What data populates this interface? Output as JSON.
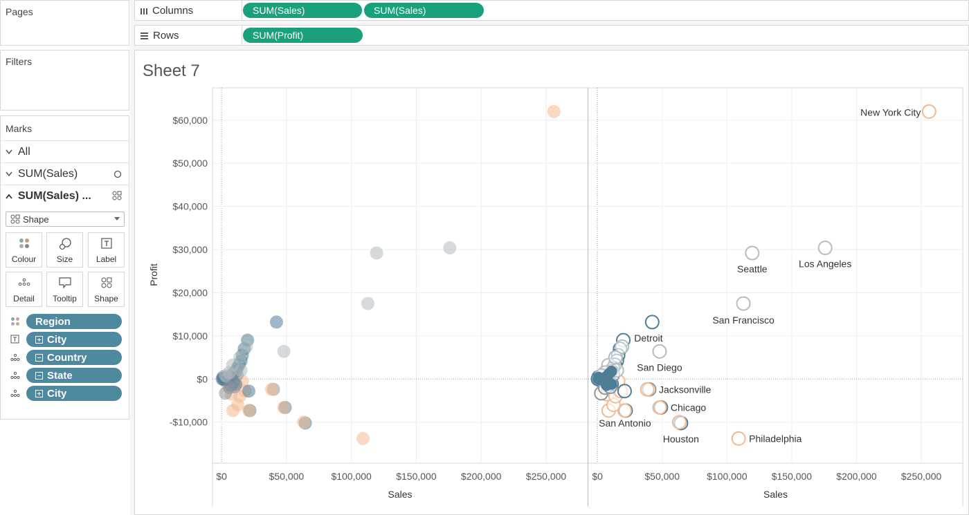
{
  "left_panel": {
    "pages_title": "Pages",
    "filters_title": "Filters",
    "marks_title": "Marks",
    "marks_rows": [
      {
        "label": "All",
        "expanded": true
      },
      {
        "label": "SUM(Sales)",
        "expanded": false,
        "icon": "circle-icon"
      },
      {
        "label": "SUM(Sales) ...",
        "expanded": true,
        "icon": "shape-icon"
      }
    ],
    "mark_type": "Shape",
    "mark_buttons": [
      "Colour",
      "Size",
      "Label",
      "Detail",
      "Tooltip",
      "Shape"
    ],
    "fields": [
      {
        "label": "Region",
        "role": "colour",
        "toggle": ""
      },
      {
        "label": "City",
        "role": "label",
        "toggle": "plus"
      },
      {
        "label": "Country",
        "role": "detail",
        "toggle": "minus"
      },
      {
        "label": "State",
        "role": "detail",
        "toggle": "minus"
      },
      {
        "label": "City",
        "role": "detail",
        "toggle": "plus"
      }
    ]
  },
  "shelves": {
    "columns_label": "Columns",
    "columns_pills": [
      "SUM(Sales)",
      "SUM(Sales)"
    ],
    "rows_label": "Rows",
    "rows_pills": [
      "SUM(Profit)"
    ]
  },
  "sheet_title": "Sheet 7",
  "colors": {
    "central": "#4e7d96",
    "east": "#f4b990",
    "west": "#b3bcc0",
    "south": "#8f969a",
    "green_pill": "#1aa07a",
    "blue_pill": "#4e89a0"
  },
  "chart_data": {
    "type": "scatter",
    "panes": 2,
    "xlabel": "Sales",
    "ylabel": "Profit",
    "x_ticks": [
      0,
      50000,
      100000,
      150000,
      200000,
      250000
    ],
    "x_tick_labels": [
      "$0",
      "$50,000",
      "$100,000",
      "$150,000",
      "$200,000",
      "$250,000"
    ],
    "y_ticks": [
      -10000,
      0,
      10000,
      20000,
      30000,
      40000,
      50000,
      60000
    ],
    "y_tick_labels": [
      "-$10,000",
      "$0",
      "$10,000",
      "$20,000",
      "$30,000",
      "$40,000",
      "$50,000",
      "$60,000"
    ],
    "xlim": [
      -7000,
      282000
    ],
    "ylim": [
      -19500,
      67500
    ],
    "grid": true,
    "pane1_style": "filled",
    "pane2_style": "hollow",
    "points": [
      {
        "city": "New York City",
        "region": "east",
        "x": 256000,
        "y": 62000,
        "label": true
      },
      {
        "city": "Los Angeles",
        "region": "west",
        "x": 175800,
        "y": 30400,
        "label": true
      },
      {
        "city": "Seattle",
        "region": "west",
        "x": 119500,
        "y": 29200,
        "label": true
      },
      {
        "city": "San Francisco",
        "region": "west",
        "x": 112700,
        "y": 17500,
        "label": true
      },
      {
        "city": "Detroit",
        "region": "central",
        "x": 42300,
        "y": 13200,
        "label": true
      },
      {
        "city": "San Diego",
        "region": "west",
        "x": 48000,
        "y": 6400,
        "label": true
      },
      {
        "city": "Jacksonville",
        "region": "south",
        "x": 40000,
        "y": -2400,
        "label": true
      },
      {
        "city": "Chicago",
        "region": "central",
        "x": 49000,
        "y": -6600,
        "label": true
      },
      {
        "city": "Houston",
        "region": "central",
        "x": 64500,
        "y": -10200,
        "label": true
      },
      {
        "city": "Philadelphia",
        "region": "east",
        "x": 109000,
        "y": -13800,
        "label": true
      },
      {
        "city": "San Antonio",
        "region": "central",
        "x": 21800,
        "y": -7300,
        "label": true
      },
      {
        "city": "",
        "region": "east",
        "x": 63200,
        "y": -10000
      },
      {
        "city": "",
        "region": "east",
        "x": 48000,
        "y": -6600
      },
      {
        "city": "",
        "region": "east",
        "x": 38500,
        "y": -2400
      },
      {
        "city": "",
        "region": "east",
        "x": 21000,
        "y": -7300
      },
      {
        "city": "",
        "region": "east",
        "x": 8700,
        "y": -7300
      },
      {
        "city": "",
        "region": "east",
        "x": 12500,
        "y": -6000
      },
      {
        "city": "",
        "region": "east",
        "x": 7500,
        "y": -3500
      },
      {
        "city": "",
        "region": "east",
        "x": 14000,
        "y": -4000
      },
      {
        "city": "",
        "region": "east",
        "x": 18000,
        "y": -2800
      },
      {
        "city": "",
        "region": "east",
        "x": 5000,
        "y": -1500
      },
      {
        "city": "",
        "region": "east",
        "x": 10000,
        "y": -1000
      },
      {
        "city": "",
        "region": "east",
        "x": 16000,
        "y": -500
      },
      {
        "city": "",
        "region": "central",
        "x": 20000,
        "y": 9000
      },
      {
        "city": "",
        "region": "central",
        "x": 17500,
        "y": 7000
      },
      {
        "city": "",
        "region": "central",
        "x": 16000,
        "y": 5500
      },
      {
        "city": "",
        "region": "central",
        "x": 15000,
        "y": 4200
      },
      {
        "city": "",
        "region": "central",
        "x": 13500,
        "y": 3300
      },
      {
        "city": "",
        "region": "central",
        "x": 21000,
        "y": -2800
      },
      {
        "city": "",
        "region": "central",
        "x": 12000,
        "y": 2500
      },
      {
        "city": "",
        "region": "central",
        "x": 11000,
        "y": 1800
      },
      {
        "city": "",
        "region": "central",
        "x": 9500,
        "y": 1400
      },
      {
        "city": "",
        "region": "central",
        "x": 8000,
        "y": 900
      },
      {
        "city": "",
        "region": "central",
        "x": 7000,
        "y": 600
      },
      {
        "city": "",
        "region": "central",
        "x": 6000,
        "y": 300
      },
      {
        "city": "",
        "region": "central",
        "x": 5000,
        "y": 100
      },
      {
        "city": "",
        "region": "central",
        "x": 4000,
        "y": 0
      },
      {
        "city": "",
        "region": "central",
        "x": 3000,
        "y": -200
      },
      {
        "city": "",
        "region": "central",
        "x": 2000,
        "y": 200
      },
      {
        "city": "",
        "region": "central",
        "x": 1500,
        "y": -100
      },
      {
        "city": "",
        "region": "central",
        "x": 1000,
        "y": 400
      },
      {
        "city": "",
        "region": "central",
        "x": 500,
        "y": 0
      },
      {
        "city": "",
        "region": "central",
        "x": 9000,
        "y": -800
      },
      {
        "city": "",
        "region": "central",
        "x": 7000,
        "y": -1500
      },
      {
        "city": "",
        "region": "central",
        "x": 11000,
        "y": -1200
      },
      {
        "city": "",
        "region": "south",
        "x": 3000,
        "y": -3300
      },
      {
        "city": "",
        "region": "south",
        "x": 6000,
        "y": -2000
      },
      {
        "city": "",
        "region": "south",
        "x": 10000,
        "y": -1800
      },
      {
        "city": "",
        "region": "south",
        "x": 4000,
        "y": 500
      },
      {
        "city": "",
        "region": "south",
        "x": 12000,
        "y": 1000
      },
      {
        "city": "",
        "region": "west",
        "x": 8500,
        "y": 3200
      },
      {
        "city": "",
        "region": "west",
        "x": 14000,
        "y": 5000
      },
      {
        "city": "",
        "region": "west",
        "x": 19000,
        "y": 7500
      },
      {
        "city": "",
        "region": "west",
        "x": 6000,
        "y": 1500
      },
      {
        "city": "",
        "region": "west",
        "x": 15000,
        "y": 2000
      },
      {
        "city": "",
        "region": "west",
        "x": 3000,
        "y": 800
      }
    ]
  }
}
